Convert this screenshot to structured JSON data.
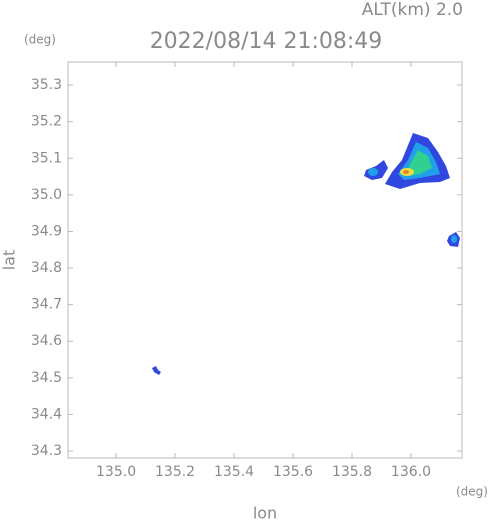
{
  "chart_data": {
    "type": "map",
    "title": "2022/08/14 21:08:49",
    "annotation": "ALT(km) 2.0",
    "x_label": "lon",
    "y_label": "lat",
    "x_unit": "(deg)",
    "y_unit": "(deg)",
    "xlim": [
      134.837,
      136.173
    ],
    "ylim": [
      34.281,
      35.363
    ],
    "xticks": [
      {
        "value": 135,
        "label": "135.0"
      },
      135.2,
      135.4,
      135.6,
      135.8,
      {
        "value": 136,
        "label": "136.0"
      }
    ],
    "yticks": [
      34.3,
      34.4,
      34.5,
      34.6,
      34.7,
      34.8,
      34.9,
      {
        "value": 35,
        "label": "35.0"
      },
      35.1,
      35.2,
      35.3
    ]
  }
}
